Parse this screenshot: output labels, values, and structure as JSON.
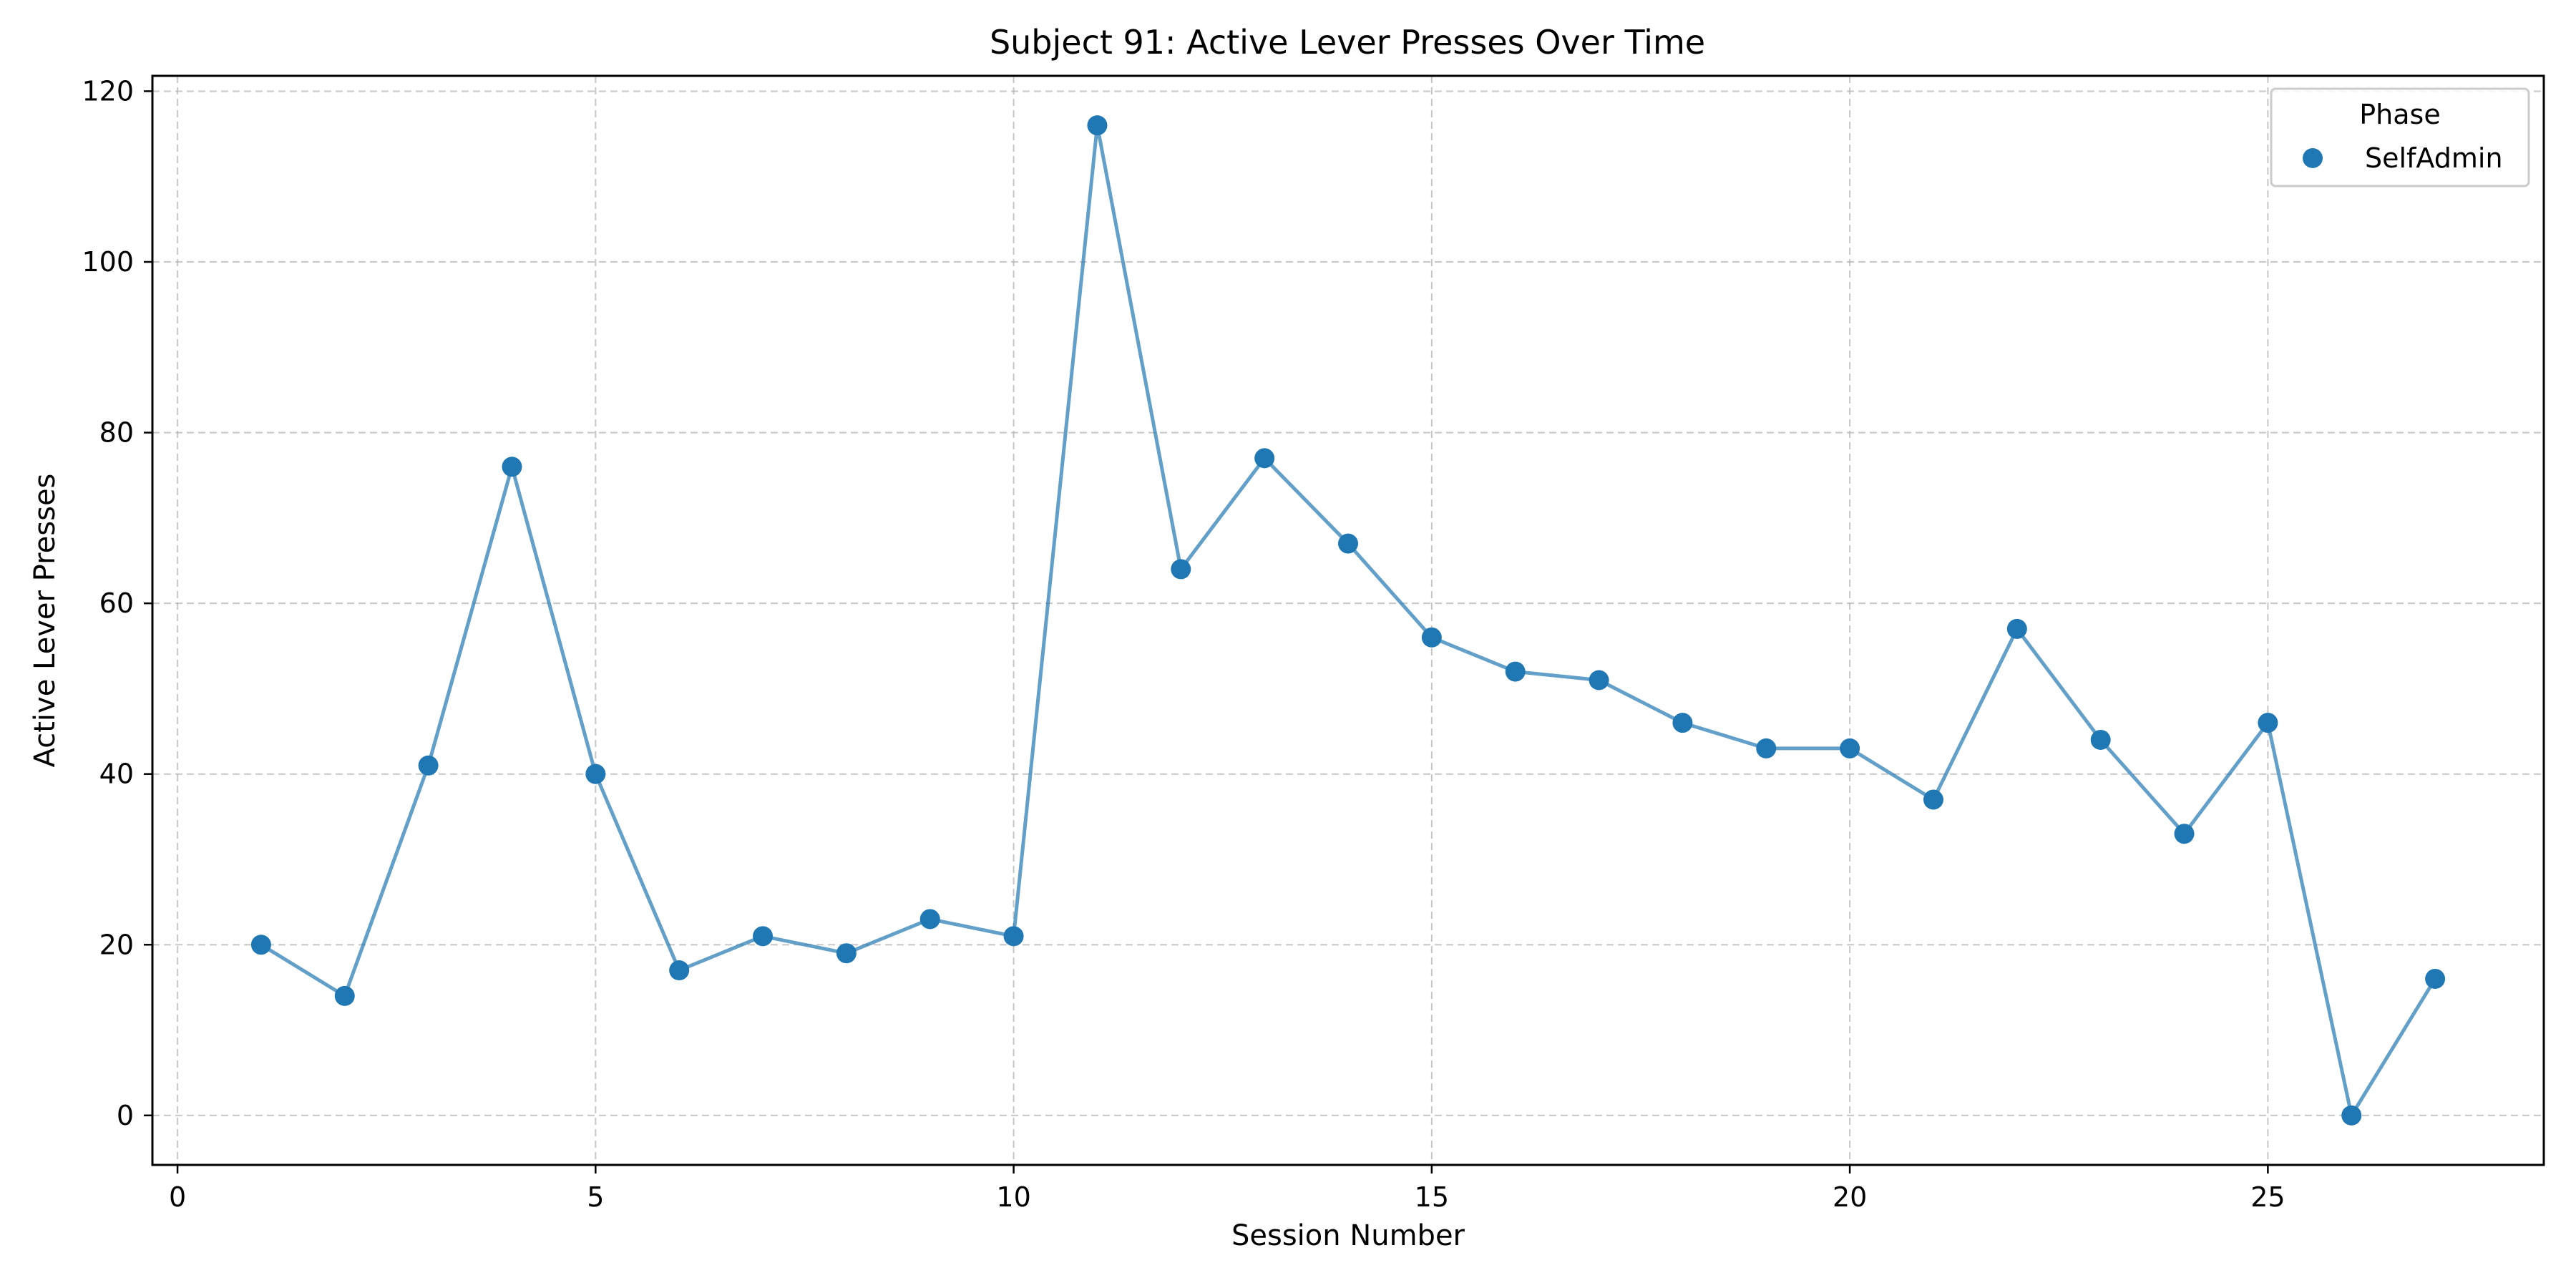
{
  "chart_data": {
    "type": "line",
    "title": "Subject 91: Active Lever Presses Over Time",
    "xlabel": "Session Number",
    "ylabel": "Active Lever Presses",
    "xlim": [
      -0.3,
      28.3
    ],
    "ylim": [
      -5.8,
      121.8
    ],
    "xticks": [
      0,
      5,
      10,
      15,
      20,
      25
    ],
    "yticks": [
      0,
      20,
      40,
      60,
      80,
      100,
      120
    ],
    "grid": true,
    "legend": {
      "title": "Phase",
      "placement": "top-right"
    },
    "series": [
      {
        "name": "SelfAdmin",
        "color": "#1f77b4",
        "x": [
          1,
          2,
          3,
          4,
          5,
          6,
          7,
          8,
          9,
          10,
          11,
          12,
          13,
          14,
          15,
          16,
          17,
          18,
          19,
          20,
          21,
          22,
          23,
          24,
          25,
          26,
          27
        ],
        "y": [
          20,
          14,
          41,
          76,
          40,
          17,
          21,
          19,
          23,
          21,
          116,
          64,
          77,
          67,
          56,
          52,
          51,
          46,
          43,
          43,
          37,
          57,
          44,
          33,
          46,
          0,
          16
        ]
      }
    ]
  }
}
